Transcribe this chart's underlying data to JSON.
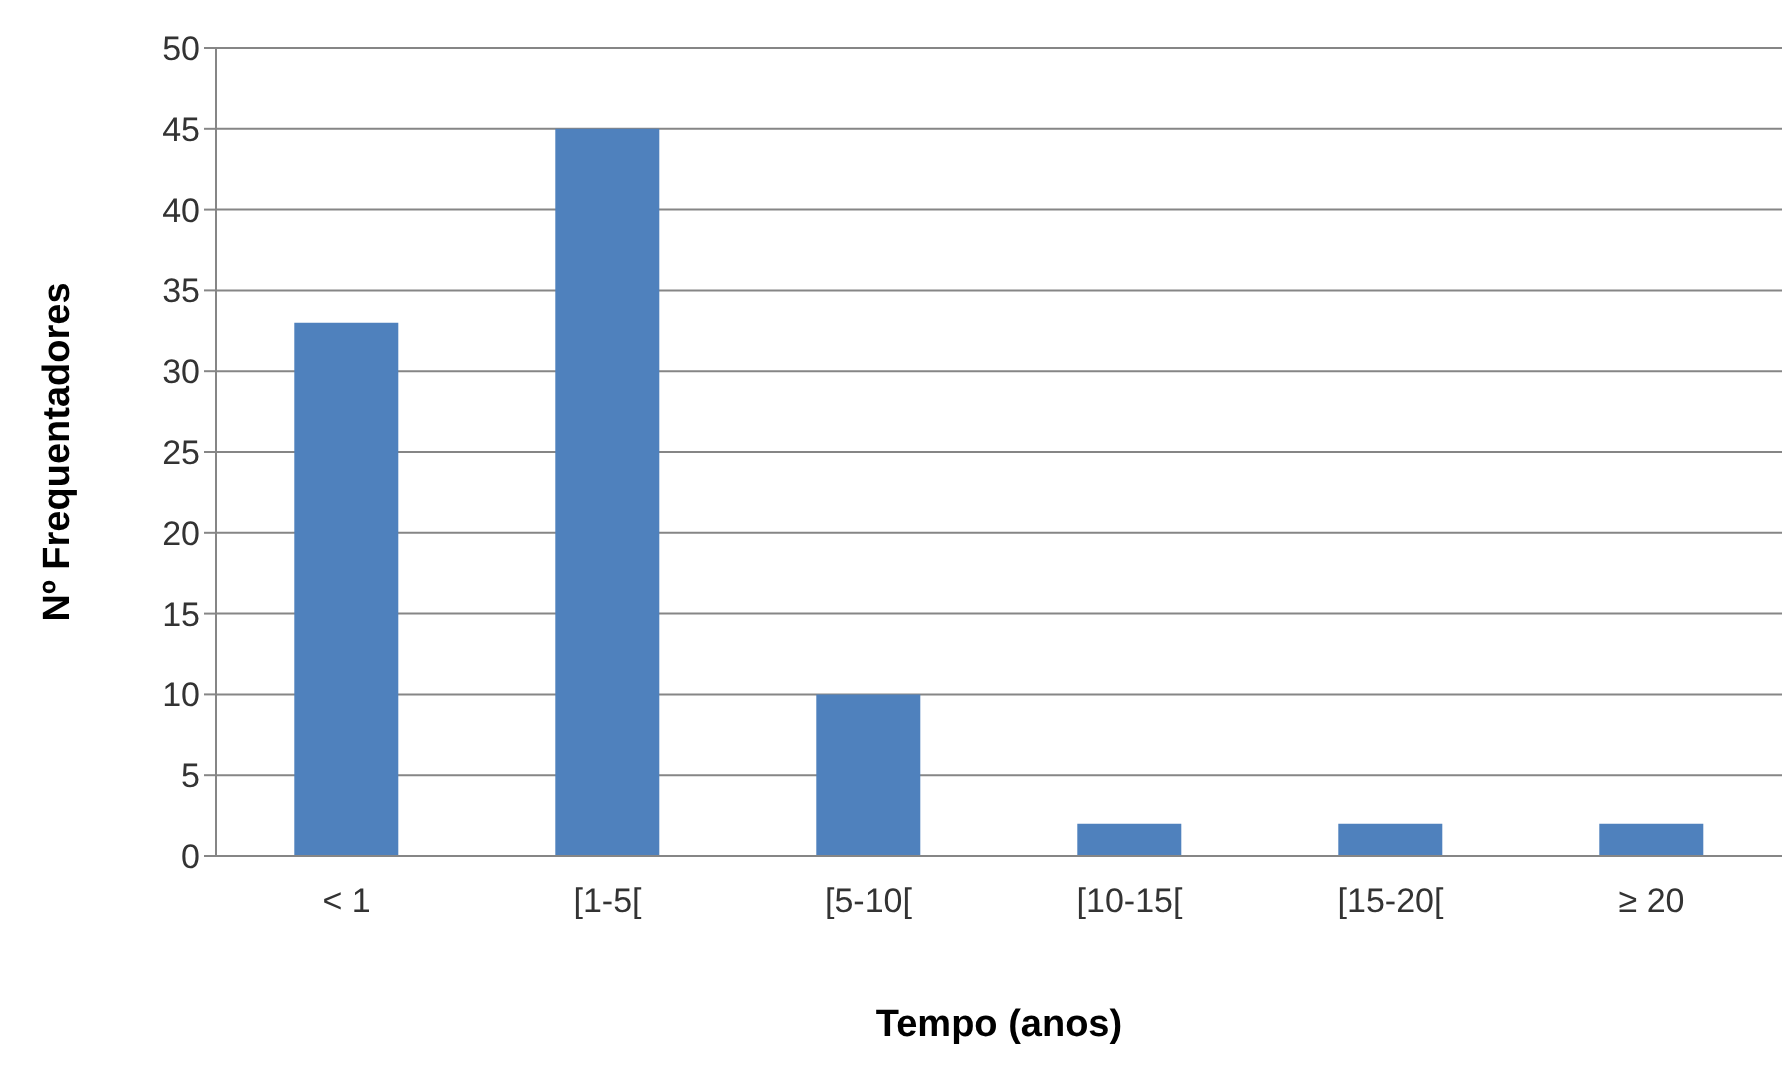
{
  "chart_data": {
    "type": "bar",
    "xlabel": "Tempo (anos)",
    "ylabel": "Nº Frequentadores",
    "categories": [
      "< 1",
      "[1-5[",
      "[5-10[",
      "[10-15[",
      "[15-20[",
      "≥ 20"
    ],
    "values": [
      33,
      45,
      10,
      2,
      2,
      2
    ],
    "color": "#4f81bd",
    "ylim": [
      0,
      50
    ],
    "yticks": [
      0,
      5,
      10,
      15,
      20,
      25,
      30,
      35,
      40,
      45,
      50
    ],
    "grid": "y"
  }
}
